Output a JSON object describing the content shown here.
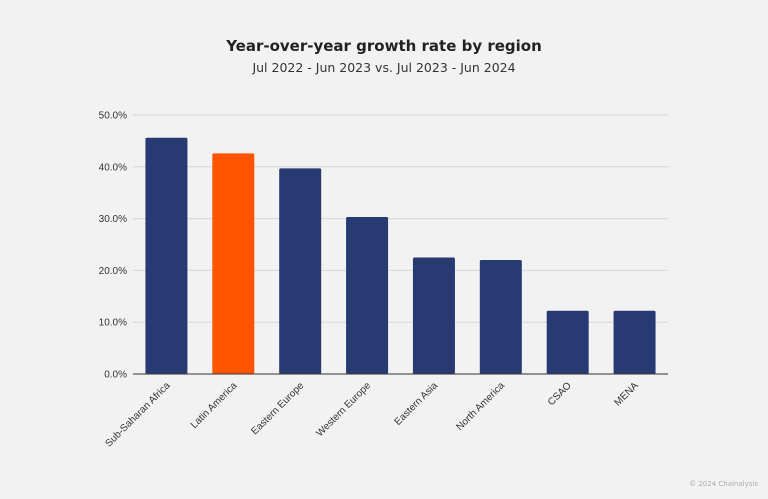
{
  "chart_data": {
    "type": "bar",
    "title": "Year-over-year growth rate by region",
    "subtitle": "Jul 2022 - Jun 2023 vs. Jul 2023 - Jun 2024",
    "xlabel": "",
    "ylabel": "",
    "categories": [
      "Sub-Saharan Africa",
      "Latin America",
      "Eastern Europe",
      "Western Europe",
      "Eastern Asia",
      "North America",
      "CSAO",
      "MENA"
    ],
    "values": [
      45.6,
      42.6,
      39.7,
      30.3,
      22.5,
      22.0,
      12.2,
      12.2
    ],
    "ylim": [
      0,
      50
    ],
    "yticks": [
      "0.0%",
      "10.0%",
      "20.0%",
      "30.0%",
      "40.0%",
      "50.0%"
    ],
    "grid": true,
    "legend": "none",
    "colors": {
      "default": "#283a72",
      "highlight": "#ff5500",
      "highlight_category": "Latin America"
    }
  },
  "footer": "© 2024 Chainalysis"
}
